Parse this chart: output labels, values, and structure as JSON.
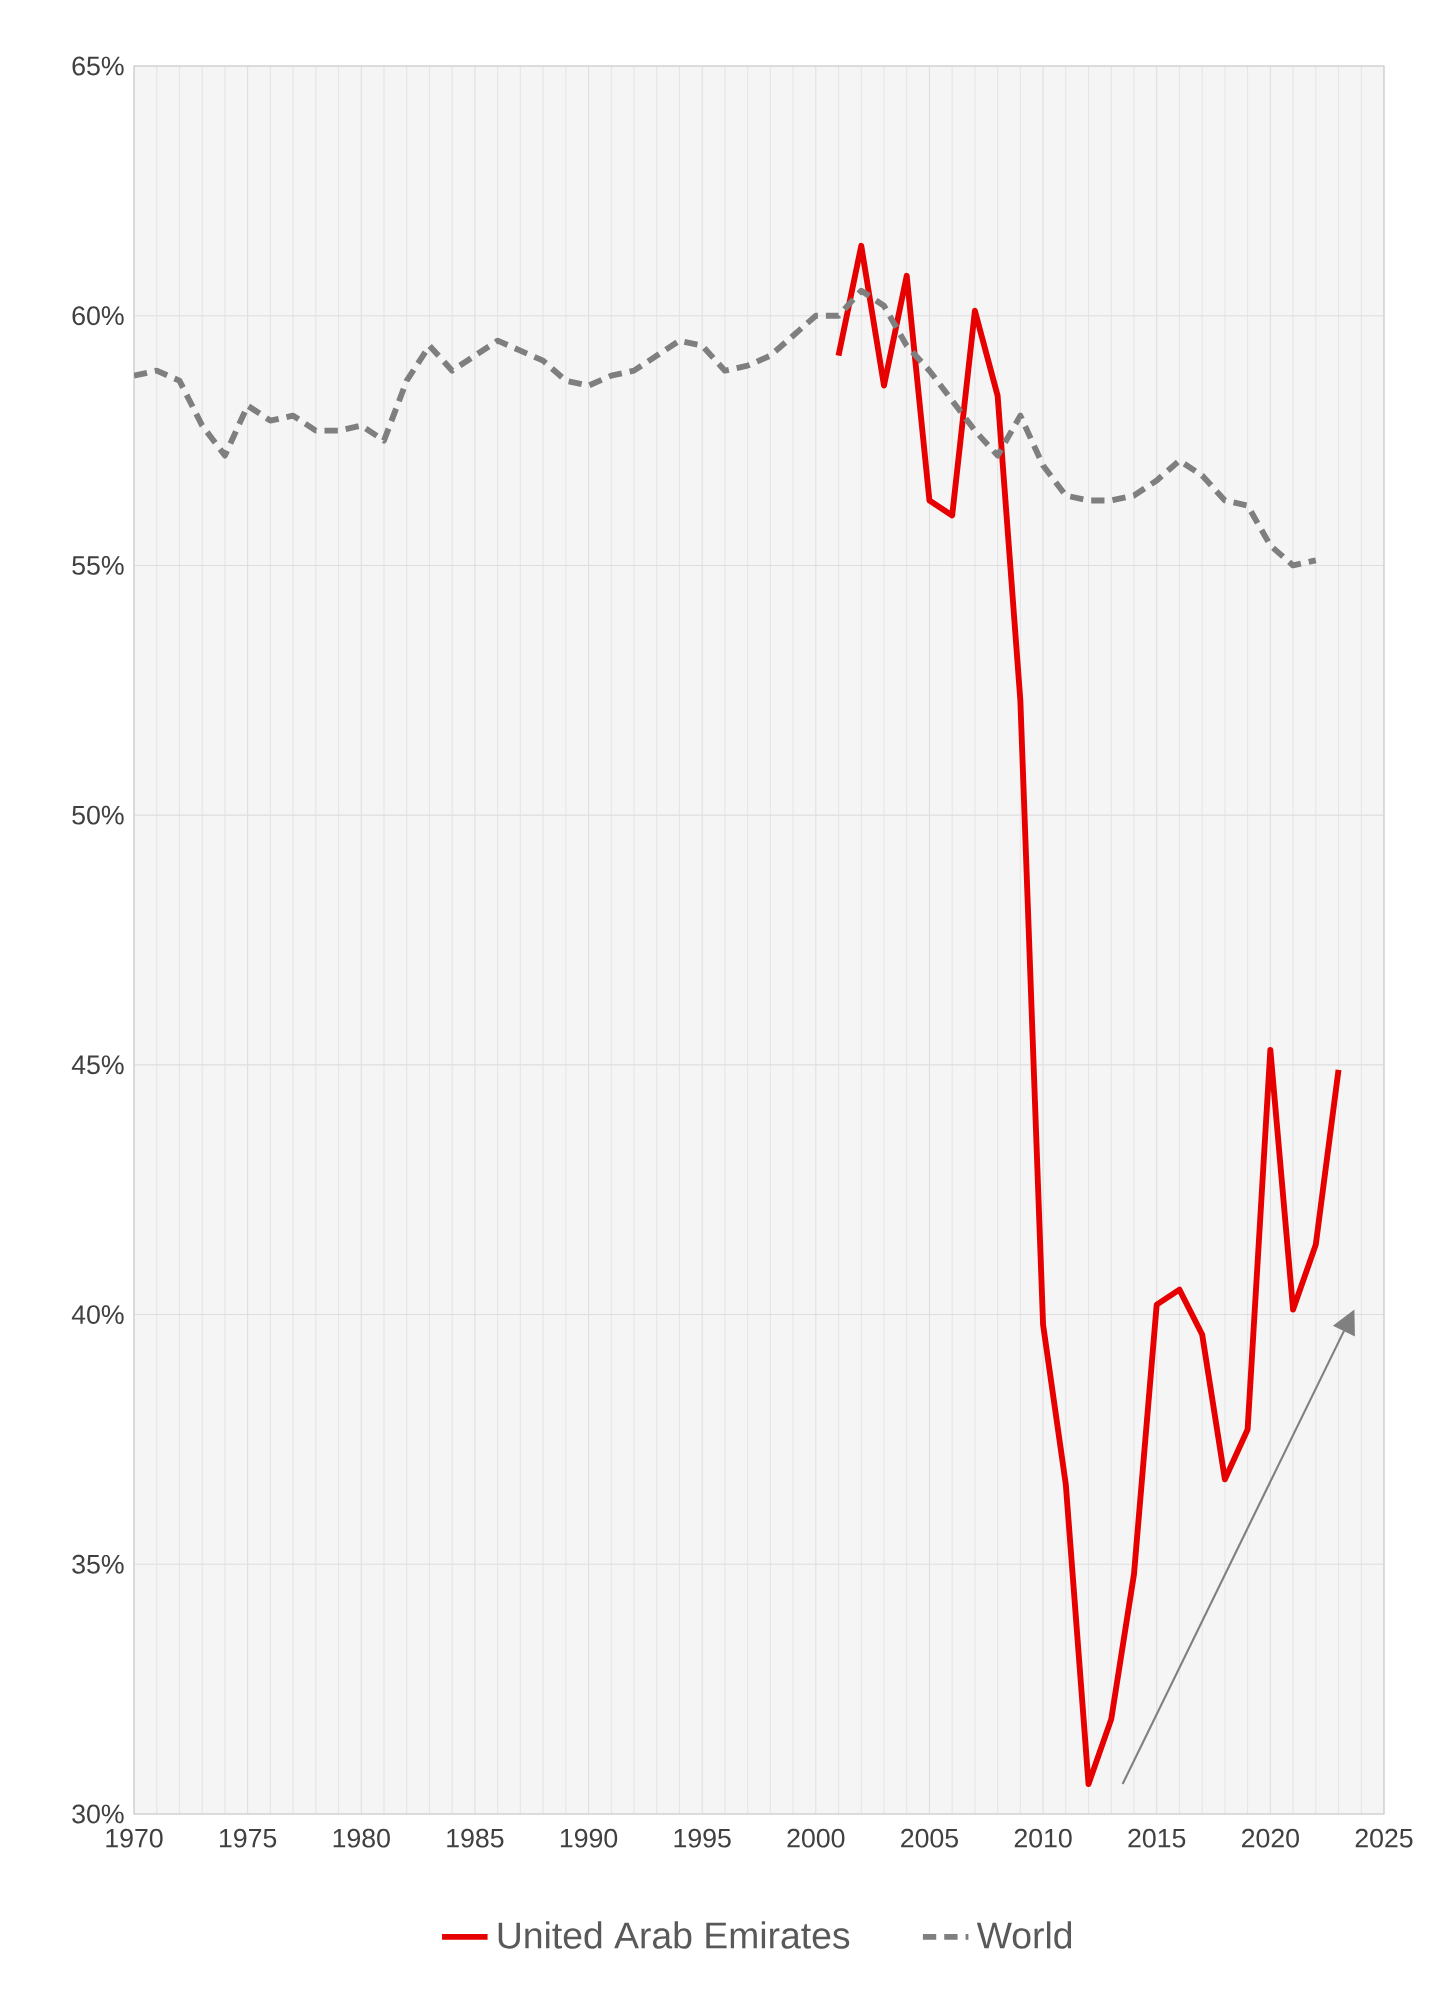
{
  "chart_data": {
    "type": "line",
    "series": [
      {
        "name": "United Arab Emirates",
        "color": "#e60000",
        "line_style": "solid",
        "x": [
          2001,
          2002,
          2003,
          2004,
          2005,
          2006,
          2007,
          2008,
          2009,
          2010,
          2011,
          2012,
          2013,
          2014,
          2015,
          2016,
          2017,
          2018,
          2019,
          2020,
          2021,
          2022,
          2023
        ],
        "values": [
          59.2,
          61.4,
          58.6,
          60.8,
          56.3,
          56.0,
          60.1,
          58.4,
          52.3,
          39.8,
          36.6,
          30.6,
          31.9,
          34.8,
          40.2,
          40.5,
          39.6,
          36.7,
          37.7,
          45.3,
          40.1,
          41.4,
          44.9
        ]
      },
      {
        "name": "World",
        "color": "#7f7f7f",
        "line_style": "dashed",
        "x": [
          1970,
          1971,
          1972,
          1973,
          1974,
          1975,
          1976,
          1977,
          1978,
          1979,
          1980,
          1981,
          1982,
          1983,
          1984,
          1985,
          1986,
          1987,
          1988,
          1989,
          1990,
          1991,
          1992,
          1993,
          1994,
          1995,
          1996,
          1997,
          1998,
          1999,
          2000,
          2001,
          2002,
          2003,
          2004,
          2005,
          2006,
          2007,
          2008,
          2009,
          2010,
          2011,
          2012,
          2013,
          2014,
          2015,
          2016,
          2017,
          2018,
          2019,
          2020,
          2021,
          2022
        ],
        "values": [
          58.8,
          58.9,
          58.7,
          57.8,
          57.2,
          58.2,
          57.9,
          58.0,
          57.7,
          57.7,
          57.8,
          57.5,
          58.7,
          59.4,
          58.9,
          59.2,
          59.5,
          59.3,
          59.1,
          58.7,
          58.6,
          58.8,
          58.9,
          59.2,
          59.5,
          59.4,
          58.9,
          59.0,
          59.2,
          59.6,
          60.0,
          60.0,
          60.5,
          60.2,
          59.4,
          58.9,
          58.3,
          57.7,
          57.2,
          58.0,
          57.0,
          56.4,
          56.3,
          56.3,
          56.4,
          56.7,
          57.1,
          56.8,
          56.3,
          56.2,
          55.4,
          55.0,
          55.1
        ]
      }
    ],
    "xlim": [
      1970,
      2025
    ],
    "xticks": [
      1970,
      1975,
      1980,
      1985,
      1990,
      1995,
      2000,
      2005,
      2010,
      2015,
      2020,
      2025
    ],
    "ylim": [
      30,
      65
    ],
    "yticks": [
      {
        "value": 30,
        "label": "30%"
      },
      {
        "value": 35,
        "label": "35%"
      },
      {
        "value": 40,
        "label": "40%"
      },
      {
        "value": 45,
        "label": "45%"
      },
      {
        "value": 50,
        "label": "50%"
      },
      {
        "value": 55,
        "label": "55%"
      },
      {
        "value": 60,
        "label": "60%"
      },
      {
        "value": 65,
        "label": "65%"
      }
    ],
    "grid": true,
    "legend": "bottom"
  }
}
